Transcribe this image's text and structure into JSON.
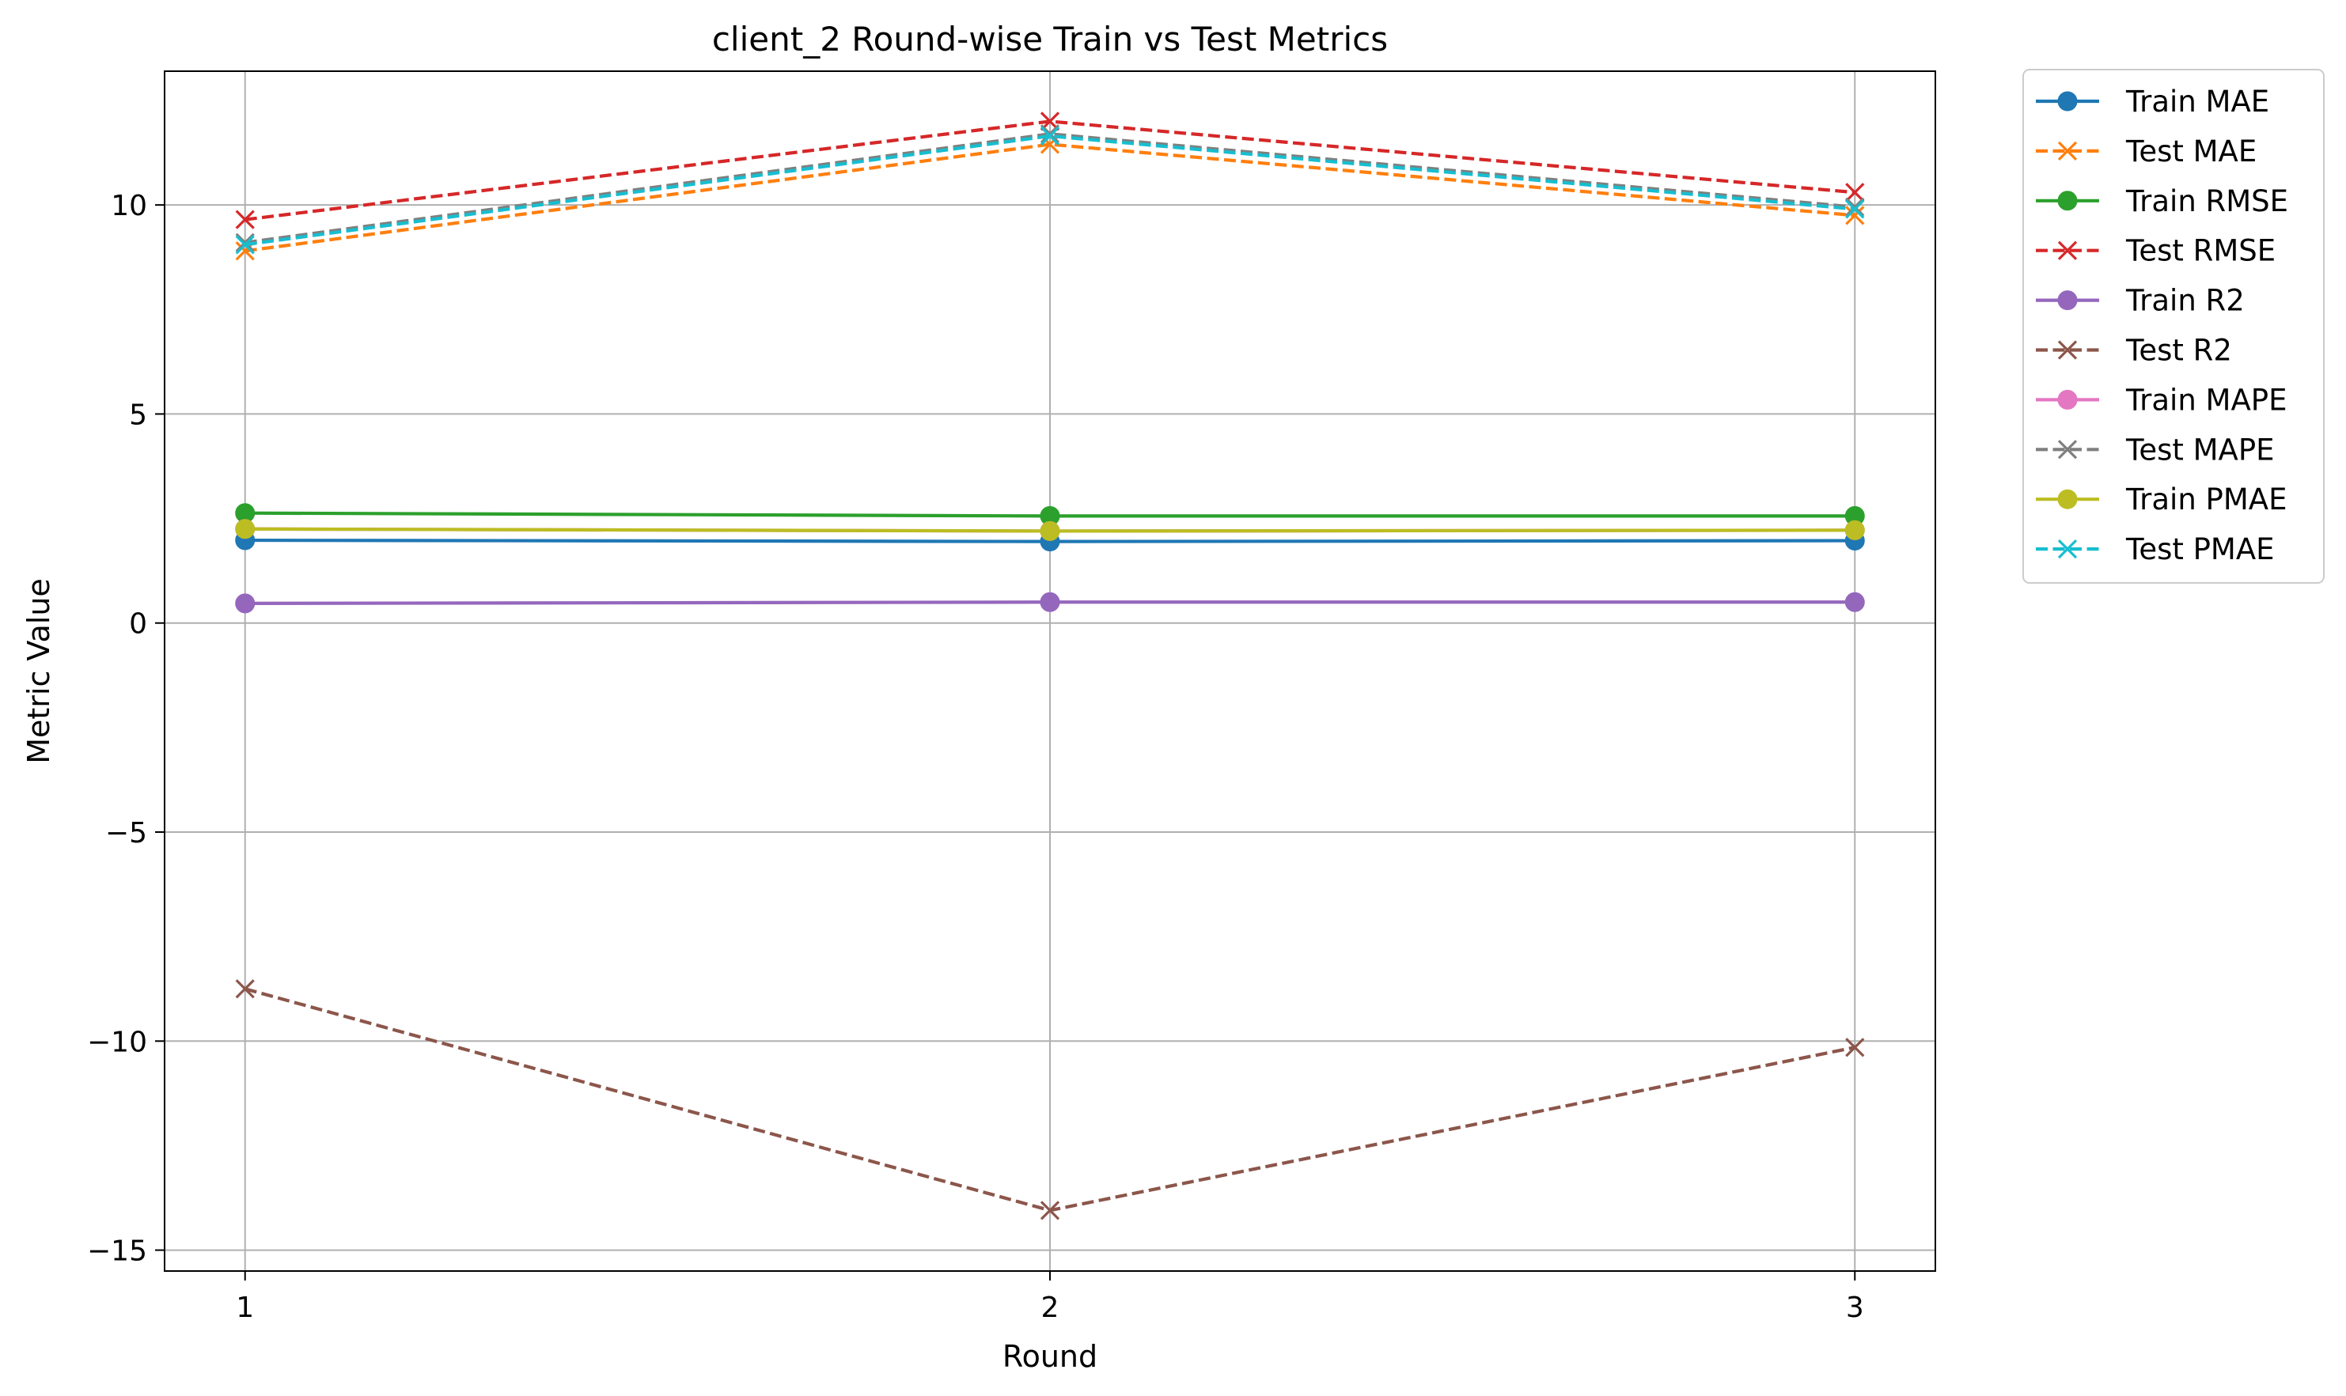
{
  "chart_data": {
    "type": "line",
    "title": "client_2 Round-wise Train vs Test Metrics",
    "xlabel": "Round",
    "ylabel": "Metric Value",
    "x": [
      1,
      2,
      3
    ],
    "xticks": [
      1,
      2,
      3
    ],
    "yticks": [
      -15,
      -10,
      -5,
      0,
      5,
      10
    ],
    "ytick_labels": [
      "−15",
      "−10",
      "−5",
      "0",
      "5",
      "10"
    ],
    "xlim": [
      0.9,
      3.1
    ],
    "ylim": [
      -15.5,
      13.2
    ],
    "grid": true,
    "legend_position": "outside-upper-right",
    "series": [
      {
        "name": "Train MAE",
        "values": [
          1.98,
          1.95,
          1.97
        ],
        "color": "#1f77b4",
        "dash": "solid",
        "marker": "circle"
      },
      {
        "name": "Test MAE",
        "values": [
          8.9,
          11.45,
          9.75
        ],
        "color": "#ff7f0e",
        "dash": "dashed",
        "marker": "x"
      },
      {
        "name": "Train RMSE",
        "values": [
          2.63,
          2.56,
          2.56
        ],
        "color": "#2ca02c",
        "dash": "solid",
        "marker": "circle"
      },
      {
        "name": "Test RMSE",
        "values": [
          9.65,
          12.0,
          10.3
        ],
        "color": "#d62728",
        "dash": "dashed",
        "marker": "x"
      },
      {
        "name": "Train R2",
        "values": [
          0.47,
          0.5,
          0.5
        ],
        "color": "#9467bd",
        "dash": "solid",
        "marker": "circle"
      },
      {
        "name": "Test R2",
        "values": [
          -8.75,
          -14.05,
          -10.15
        ],
        "color": "#8c564b",
        "dash": "dashed",
        "marker": "x"
      },
      {
        "name": "Train MAPE",
        "values": [
          2.25,
          2.2,
          2.22
        ],
        "color": "#e377c2",
        "dash": "solid",
        "marker": "circle"
      },
      {
        "name": "Test MAPE",
        "values": [
          9.1,
          11.7,
          9.95
        ],
        "color": "#7f7f7f",
        "dash": "dashed",
        "marker": "x"
      },
      {
        "name": "Train PMAE",
        "values": [
          2.25,
          2.2,
          2.22
        ],
        "color": "#bcbd22",
        "dash": "solid",
        "marker": "circle"
      },
      {
        "name": "Test PMAE",
        "values": [
          9.05,
          11.65,
          9.9
        ],
        "color": "#17becf",
        "dash": "dashed",
        "marker": "x"
      }
    ]
  }
}
